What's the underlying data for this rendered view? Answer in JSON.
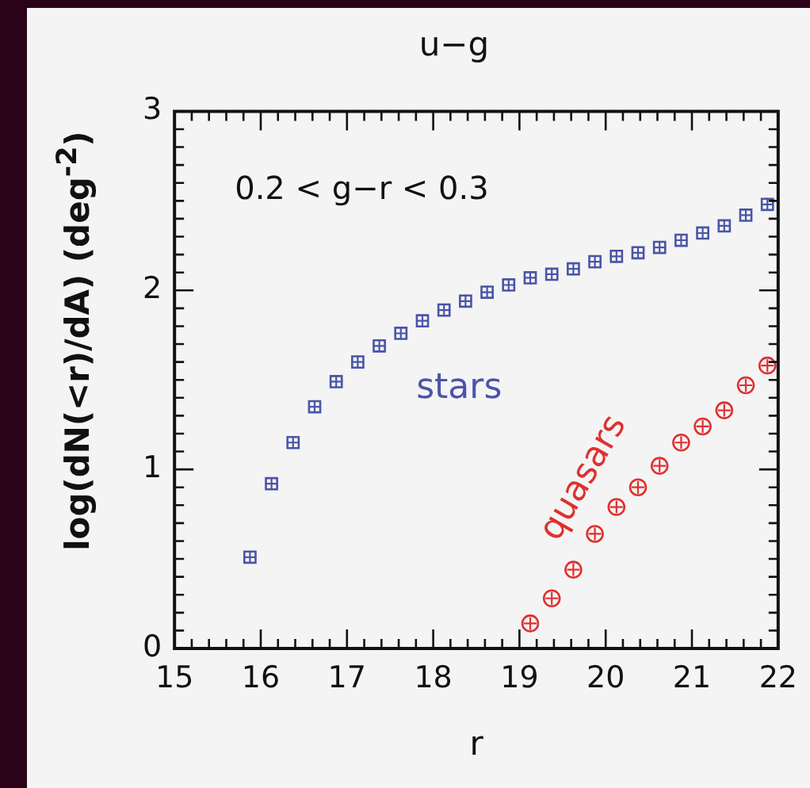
{
  "chart_data": {
    "type": "scatter",
    "title": "u−g",
    "xlabel": "r",
    "ylabel": "log(dN(<r)/dA)  (deg$^{-2}$)",
    "annotations": [
      "0.2 < g−r < 0.3"
    ],
    "xlim": [
      15,
      22
    ],
    "ylim": [
      0,
      3
    ],
    "xticks": [
      15,
      {
        "value": 15.2,
        "label": null
      },
      {
        "value": 15.4,
        "label": null
      },
      {
        "value": 15.6,
        "label": null
      },
      {
        "value": 15.8,
        "label": null
      },
      16,
      {
        "value": 16.2,
        "label": null
      },
      {
        "value": 16.4,
        "label": null
      },
      {
        "value": 16.6,
        "label": null
      },
      {
        "value": 16.8,
        "label": null
      },
      17,
      {
        "value": 17.2,
        "label": null
      },
      {
        "value": 17.4,
        "label": null
      },
      {
        "value": 17.6,
        "label": null
      },
      {
        "value": 17.8,
        "label": null
      },
      18,
      {
        "value": 18.2,
        "label": null
      },
      {
        "value": 18.4,
        "label": null
      },
      {
        "value": 18.6,
        "label": null
      },
      {
        "value": 18.8,
        "label": null
      },
      19,
      {
        "value": 19.2,
        "label": null
      },
      {
        "value": 19.4,
        "label": null
      },
      {
        "value": 19.6,
        "label": null
      },
      {
        "value": 19.8,
        "label": null
      },
      20,
      {
        "value": 20.2,
        "label": null
      },
      {
        "value": 20.4,
        "label": null
      },
      {
        "value": 20.6,
        "label": null
      },
      {
        "value": 20.8,
        "label": null
      },
      21,
      {
        "value": 21.2,
        "label": null
      },
      {
        "value": 21.4,
        "label": null
      },
      {
        "value": 21.6,
        "label": null
      },
      {
        "value": 21.8,
        "label": null
      },
      22
    ],
    "yticks": [
      0,
      {
        "value": 0.1,
        "label": null
      },
      {
        "value": 0.2,
        "label": null
      },
      {
        "value": 0.3,
        "label": null
      },
      {
        "value": 0.4,
        "label": null
      },
      {
        "value": 0.5,
        "label": null
      },
      {
        "value": 0.6,
        "label": null
      },
      {
        "value": 0.7,
        "label": null
      },
      {
        "value": 0.8,
        "label": null
      },
      {
        "value": 0.9,
        "label": null
      },
      1,
      {
        "value": 1.1,
        "label": null
      },
      {
        "value": 1.2,
        "label": null
      },
      {
        "value": 1.3,
        "label": null
      },
      {
        "value": 1.4,
        "label": null
      },
      {
        "value": 1.5,
        "label": null
      },
      {
        "value": 1.6,
        "label": null
      },
      {
        "value": 1.7,
        "label": null
      },
      {
        "value": 1.8,
        "label": null
      },
      {
        "value": 1.9,
        "label": null
      },
      2,
      {
        "value": 2.1,
        "label": null
      },
      {
        "value": 2.2,
        "label": null
      },
      {
        "value": 2.3,
        "label": null
      },
      {
        "value": 2.4,
        "label": null
      },
      {
        "value": 2.5,
        "label": null
      },
      {
        "value": 2.6,
        "label": null
      },
      {
        "value": 2.7,
        "label": null
      },
      {
        "value": 2.8,
        "label": null
      },
      {
        "value": 2.9,
        "label": null
      },
      3
    ],
    "series": [
      {
        "name": "stars",
        "color": "#4a55a8",
        "marker": "square",
        "x": [
          15.875,
          16.125,
          16.375,
          16.625,
          16.875,
          17.125,
          17.375,
          17.625,
          17.875,
          18.125,
          18.375,
          18.625,
          18.875,
          19.125,
          19.375,
          19.625,
          19.875,
          20.125,
          20.375,
          20.625,
          20.875,
          21.125,
          21.375,
          21.625,
          21.875
        ],
        "values": [
          0.51,
          0.92,
          1.15,
          1.35,
          1.49,
          1.6,
          1.69,
          1.76,
          1.83,
          1.89,
          1.94,
          1.99,
          2.03,
          2.07,
          2.09,
          2.12,
          2.16,
          2.19,
          2.21,
          2.24,
          2.28,
          2.32,
          2.36,
          2.42,
          2.48
        ]
      },
      {
        "name": "quasars",
        "color": "#e03030",
        "marker": "circle",
        "x": [
          19.125,
          19.375,
          19.625,
          19.875,
          20.125,
          20.375,
          20.625,
          20.875,
          21.125,
          21.375,
          21.625,
          21.875
        ],
        "values": [
          0.14,
          0.28,
          0.44,
          0.64,
          0.79,
          0.9,
          1.02,
          1.15,
          1.24,
          1.33,
          1.47,
          1.58
        ]
      }
    ]
  }
}
